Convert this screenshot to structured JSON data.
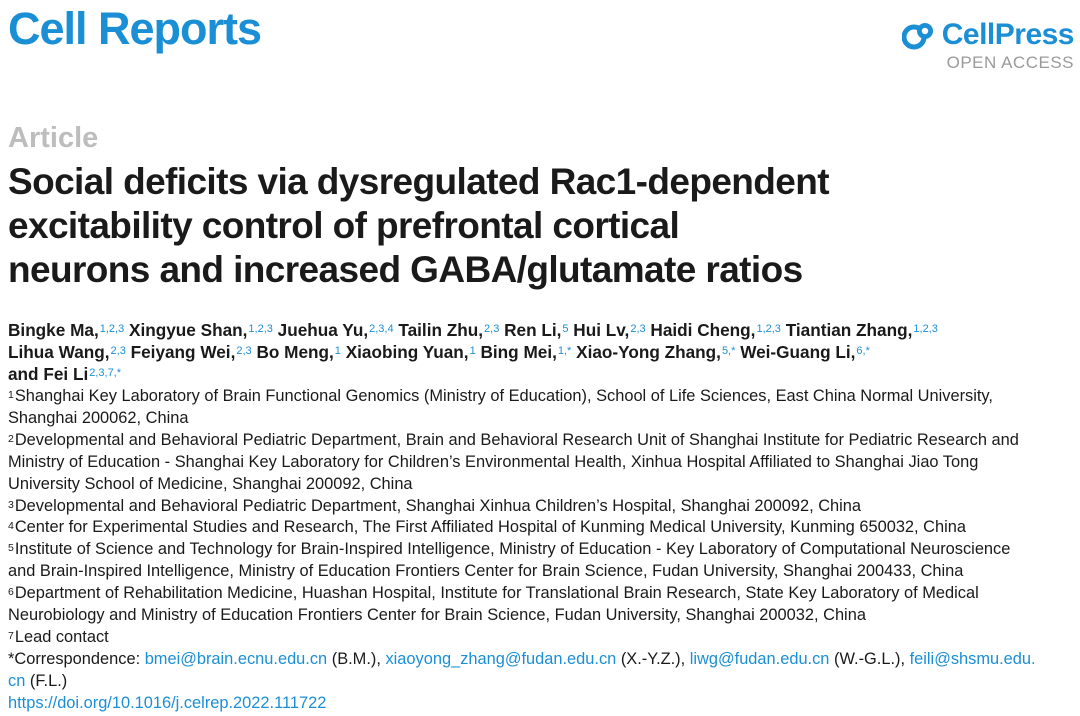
{
  "header": {
    "journal": "Cell Reports",
    "publisher": "CellPress",
    "access": "OPEN ACCESS"
  },
  "article": {
    "type": "Article",
    "title_lines": [
      "Social deficits via dysregulated Rac1-dependent",
      "excitability control of prefrontal cortical",
      "neurons and increased GABA/glutamate ratios"
    ]
  },
  "authors": [
    {
      "name": "Bingke Ma,",
      "sup": "1,2,3"
    },
    {
      "name": "Xingyue Shan,",
      "sup": "1,2,3"
    },
    {
      "name": "Juehua Yu,",
      "sup": "2,3,4"
    },
    {
      "name": "Tailin Zhu,",
      "sup": "2,3"
    },
    {
      "name": "Ren Li,",
      "sup": "5"
    },
    {
      "name": "Hui Lv,",
      "sup": "2,3"
    },
    {
      "name": "Haidi Cheng,",
      "sup": "1,2,3"
    },
    {
      "name": "Tiantian Zhang,",
      "sup": "1,2,3"
    },
    {
      "name": "Lihua Wang,",
      "sup": "2,3"
    },
    {
      "name": "Feiyang Wei,",
      "sup": "2,3"
    },
    {
      "name": "Bo Meng,",
      "sup": "1"
    },
    {
      "name": "Xiaobing Yuan,",
      "sup": "1"
    },
    {
      "name": "Bing Mei,",
      "sup": "1,*"
    },
    {
      "name": "Xiao-Yong Zhang,",
      "sup": "5,*"
    },
    {
      "name": "Wei-Guang Li,",
      "sup": "6,*"
    },
    {
      "name": "and Fei Li",
      "sup": "2,3,7,*"
    }
  ],
  "affiliations": [
    {
      "num": "1",
      "lines": [
        "Shanghai Key Laboratory of Brain Functional Genomics (Ministry of Education), School of Life Sciences, East China Normal University,",
        "Shanghai 200062, China"
      ]
    },
    {
      "num": "2",
      "lines": [
        "Developmental and Behavioral Pediatric Department, Brain and Behavioral Research Unit of Shanghai Institute for Pediatric Research and",
        "Ministry of Education - Shanghai Key Laboratory for Children’s Environmental Health, Xinhua Hospital Affiliated to Shanghai Jiao Tong",
        "University School of Medicine, Shanghai 200092, China"
      ]
    },
    {
      "num": "3",
      "lines": [
        "Developmental and Behavioral Pediatric Department, Shanghai Xinhua Children’s Hospital, Shanghai 200092, China"
      ]
    },
    {
      "num": "4",
      "lines": [
        "Center for Experimental Studies and Research, The First Affiliated Hospital of Kunming Medical University, Kunming 650032, China"
      ]
    },
    {
      "num": "5",
      "lines": [
        "Institute of Science and Technology for Brain-Inspired Intelligence, Ministry of Education - Key Laboratory of Computational Neuroscience",
        "and Brain-Inspired Intelligence, Ministry of Education Frontiers Center for Brain Science, Fudan University, Shanghai 200433, China"
      ]
    },
    {
      "num": "6",
      "lines": [
        "Department of Rehabilitation Medicine, Huashan Hospital, Institute for Translational Brain Research, State Key Laboratory of Medical",
        "Neurobiology and Ministry of Education Frontiers Center for Brain Science, Fudan University, Shanghai 200032, China"
      ]
    },
    {
      "num": "7",
      "lines": [
        "Lead contact"
      ]
    }
  ],
  "correspondence": {
    "label": "*Correspondence:",
    "entries": [
      {
        "email": "bmei@brain.ecnu.edu.cn",
        "who": "(B.M.),"
      },
      {
        "email": "xiaoyong_zhang@fudan.edu.cn",
        "who": "(X.-Y.Z.),"
      },
      {
        "email": "liwg@fudan.edu.cn",
        "who": "(W.-G.L.),"
      },
      {
        "email_part1": "feili@shsmu.edu.",
        "email_part2": "cn",
        "who": "(F.L.)"
      }
    ]
  },
  "doi": "https://doi.org/10.1016/j.celrep.2022.111722",
  "colors": {
    "brand": "#1b8fd6",
    "muted": "#bdbdbd",
    "text": "#1a1a1a"
  }
}
